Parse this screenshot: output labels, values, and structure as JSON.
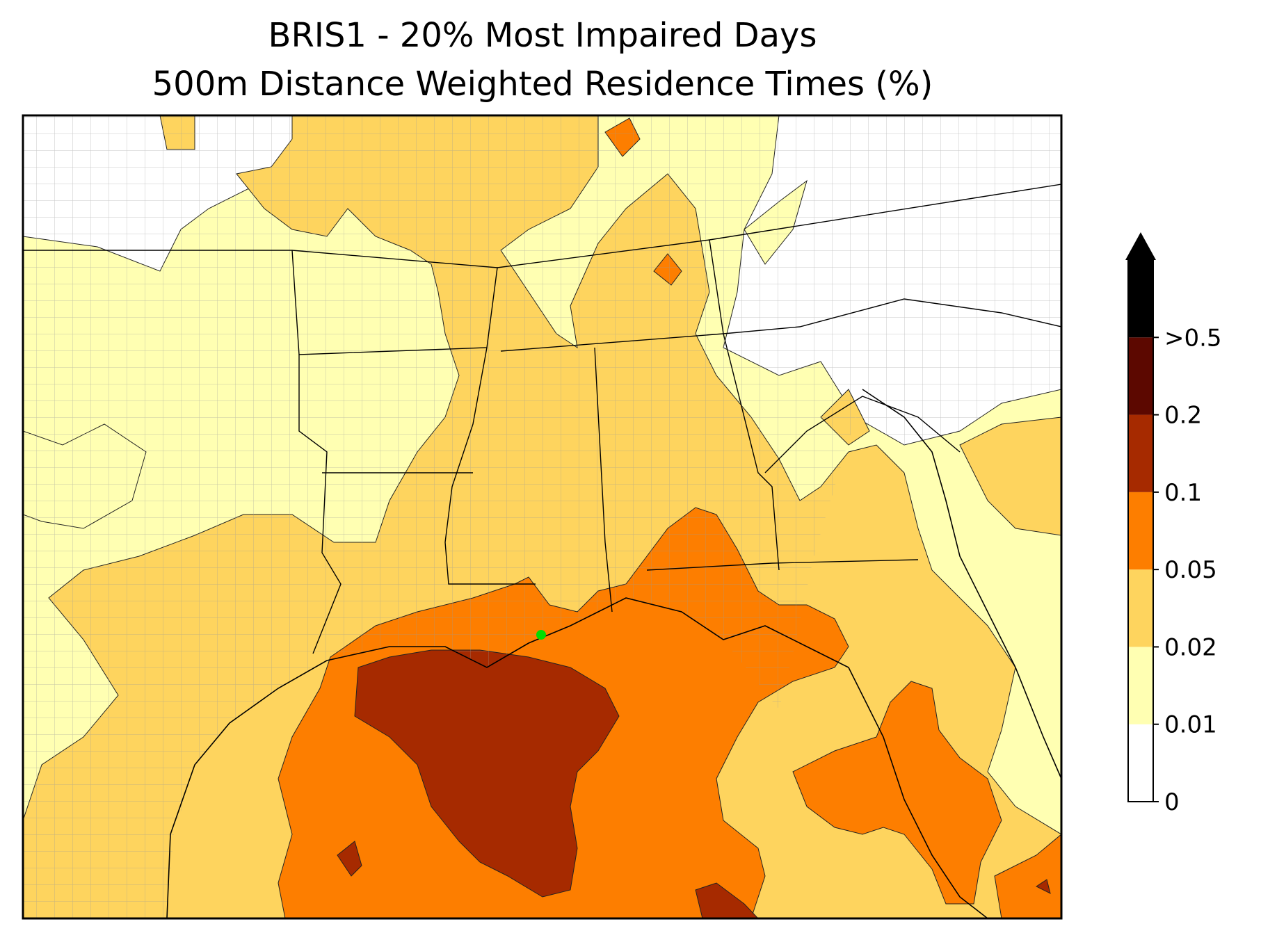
{
  "title": {
    "line1": "BRIS1 - 20% Most Impaired Days",
    "line2": "500m Distance Weighted Residence Times (%)"
  },
  "colorbar": {
    "labels": [
      "0",
      "0.01",
      "0.02",
      "0.05",
      "0.1",
      "0.2",
      ">0.5"
    ],
    "colors": [
      "#ffffff",
      "#ffffb2",
      "#fed45e",
      "#fd7e00",
      "#a62a00",
      "#5c0800",
      "#000000"
    ],
    "extend": "max"
  },
  "map": {
    "site_marker_color": "#00dd00",
    "border_color": "#000000",
    "county_line_color": "#9a9a9a"
  }
}
